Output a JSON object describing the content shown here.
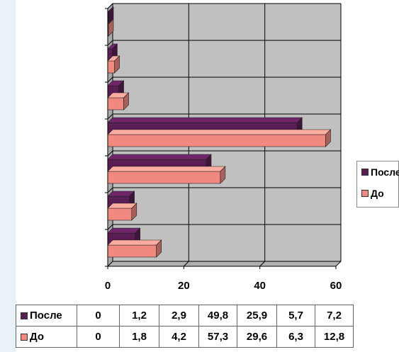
{
  "chart_data": {
    "type": "bar",
    "orientation": "horizontal",
    "style": "3d",
    "categories": [
      "",
      "",
      "",
      "",
      "",
      "",
      ""
    ],
    "series": [
      {
        "name": "После",
        "color": "#5a1e55",
        "values": [
          0,
          1.2,
          2.9,
          49.8,
          25.9,
          5.7,
          7.2
        ]
      },
      {
        "name": "До",
        "color": "#f08a80",
        "values": [
          0,
          1.8,
          4.2,
          57.3,
          29.6,
          6.3,
          12.8
        ]
      }
    ],
    "table_values": {
      "После": [
        "0",
        "1,2",
        "2,9",
        "49,8",
        "25,9",
        "5,7",
        "7,2"
      ],
      "До": [
        "0",
        "1,8",
        "4,2",
        "57,3",
        "29,6",
        "6,3",
        "12,8"
      ]
    },
    "xlim": [
      0,
      60
    ],
    "x_ticks": [
      "0",
      "20",
      "40",
      "60"
    ],
    "grid": true,
    "plot_background": "#c0c0c0",
    "legend_position": "right",
    "legend": [
      "После",
      "До"
    ]
  }
}
